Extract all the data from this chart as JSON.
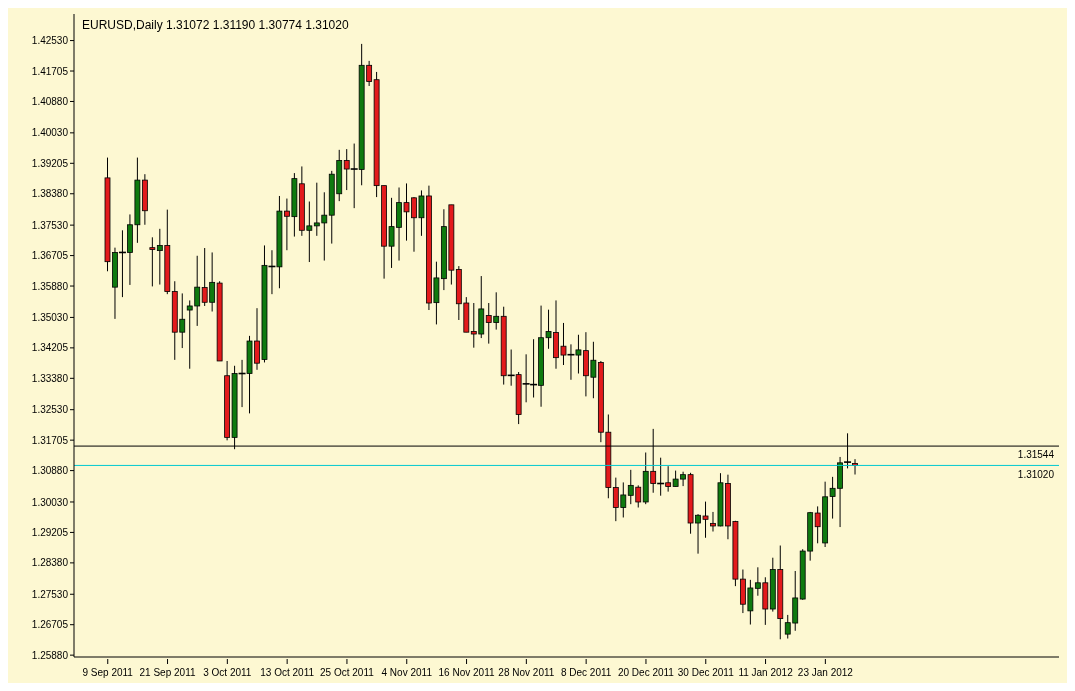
{
  "chart_data": {
    "type": "candlestick",
    "title": "EURUSD,Daily  1.31072 1.31190 1.30774 1.31020",
    "categories": [
      "9 Sep 2011",
      null,
      null,
      null,
      null,
      null,
      null,
      null,
      "21 Sep 2011",
      null,
      null,
      null,
      null,
      null,
      null,
      null,
      "3 Oct 2011",
      null,
      null,
      null,
      null,
      null,
      null,
      null,
      "13 Oct 2011",
      null,
      null,
      null,
      null,
      null,
      null,
      null,
      "25 Oct 2011",
      null,
      null,
      null,
      null,
      null,
      null,
      null,
      "4 Nov 2011",
      null,
      null,
      null,
      null,
      null,
      null,
      null,
      "16 Nov 2011",
      null,
      null,
      null,
      null,
      null,
      null,
      null,
      "28 Nov 2011",
      null,
      null,
      null,
      null,
      null,
      null,
      null,
      "8 Dec 2011",
      null,
      null,
      null,
      null,
      null,
      null,
      null,
      "20 Dec 2011",
      null,
      null,
      null,
      null,
      null,
      null,
      null,
      "30 Dec 2011",
      null,
      null,
      null,
      null,
      null,
      null,
      null,
      "11 Jan 2012",
      null,
      null,
      null,
      null,
      null,
      null,
      null,
      "23 Jan 2012",
      null,
      null,
      null,
      null
    ],
    "ohlc": [
      [
        1.3881,
        1.3936,
        1.3628,
        1.3654
      ],
      [
        1.3585,
        1.3692,
        1.3499,
        1.3679
      ],
      [
        1.3679,
        1.3739,
        1.3558,
        1.3679
      ],
      [
        1.3679,
        1.3782,
        1.3591,
        1.3754
      ],
      [
        1.3754,
        1.3936,
        1.3705,
        1.3875
      ],
      [
        1.3875,
        1.3891,
        1.3754,
        1.3792
      ],
      [
        1.3692,
        1.372,
        1.3587,
        1.3687
      ],
      [
        1.3684,
        1.3743,
        1.3592,
        1.3698
      ],
      [
        1.3698,
        1.3795,
        1.3566,
        1.3573
      ],
      [
        1.3573,
        1.3601,
        1.3388,
        1.3463
      ],
      [
        1.3463,
        1.3568,
        1.342,
        1.3498
      ],
      [
        1.3523,
        1.3549,
        1.3364,
        1.3534
      ],
      [
        1.3534,
        1.367,
        1.348,
        1.3585
      ],
      [
        1.3584,
        1.3691,
        1.3534,
        1.3544
      ],
      [
        1.3544,
        1.3679,
        1.3519,
        1.3598
      ],
      [
        1.3596,
        1.3601,
        1.3385,
        1.3385
      ],
      [
        1.3345,
        1.3385,
        1.317,
        1.3178
      ],
      [
        1.3178,
        1.3372,
        1.3146,
        1.3351
      ],
      [
        1.3351,
        1.3388,
        1.326,
        1.3351
      ],
      [
        1.3351,
        1.3453,
        1.3243,
        1.3439
      ],
      [
        1.3439,
        1.3528,
        1.3361,
        1.3379
      ],
      [
        1.3389,
        1.3698,
        1.3381,
        1.3644
      ],
      [
        1.3641,
        1.3685,
        1.3566,
        1.3641
      ],
      [
        1.364,
        1.3832,
        1.3582,
        1.3791
      ],
      [
        1.3791,
        1.3825,
        1.3685,
        1.3777
      ],
      [
        1.3776,
        1.3894,
        1.3722,
        1.3879
      ],
      [
        1.3865,
        1.3912,
        1.3724,
        1.3739
      ],
      [
        1.3739,
        1.3817,
        1.3653,
        1.3751
      ],
      [
        1.3751,
        1.3868,
        1.3724,
        1.3759
      ],
      [
        1.3759,
        1.3842,
        1.3657,
        1.378
      ],
      [
        1.378,
        1.39,
        1.3703,
        1.3891
      ],
      [
        1.3838,
        1.3957,
        1.3818,
        1.3928
      ],
      [
        1.3928,
        1.3959,
        1.3848,
        1.3905
      ],
      [
        1.3905,
        1.3974,
        1.3799,
        1.3905
      ],
      [
        1.3904,
        1.4244,
        1.3861,
        1.4186
      ],
      [
        1.4186,
        1.4198,
        1.413,
        1.4142
      ],
      [
        1.4147,
        1.4168,
        1.3829,
        1.386
      ],
      [
        1.386,
        1.386,
        1.3608,
        1.3696
      ],
      [
        1.3696,
        1.3827,
        1.3637,
        1.3749
      ],
      [
        1.3747,
        1.3855,
        1.3657,
        1.3814
      ],
      [
        1.3814,
        1.3866,
        1.3711,
        1.3789
      ],
      [
        1.3827,
        1.3829,
        1.3681,
        1.3773
      ],
      [
        1.3773,
        1.3847,
        1.3724,
        1.3832
      ],
      [
        1.3832,
        1.386,
        1.3523,
        1.3542
      ],
      [
        1.3543,
        1.3654,
        1.3484,
        1.361
      ],
      [
        1.3608,
        1.3796,
        1.3577,
        1.3749
      ],
      [
        1.3808,
        1.3808,
        1.3592,
        1.3631
      ],
      [
        1.3633,
        1.3642,
        1.3496,
        1.354
      ],
      [
        1.3542,
        1.3558,
        1.3463,
        1.3463
      ],
      [
        1.3465,
        1.3542,
        1.3421,
        1.3458
      ],
      [
        1.3458,
        1.3615,
        1.3447,
        1.3526
      ],
      [
        1.3508,
        1.3542,
        1.3432,
        1.3489
      ],
      [
        1.3489,
        1.3571,
        1.347,
        1.3506
      ],
      [
        1.3506,
        1.3532,
        1.3321,
        1.3345
      ],
      [
        1.3346,
        1.3416,
        1.3318,
        1.3346
      ],
      [
        1.3348,
        1.3355,
        1.3214,
        1.324
      ],
      [
        1.3323,
        1.3403,
        1.3273,
        1.3323
      ],
      [
        1.3321,
        1.3444,
        1.3286,
        1.3321
      ],
      [
        1.3319,
        1.3535,
        1.3261,
        1.3448
      ],
      [
        1.3448,
        1.3524,
        1.3418,
        1.3465
      ],
      [
        1.3462,
        1.3549,
        1.3364,
        1.3394
      ],
      [
        1.3425,
        1.3488,
        1.3374,
        1.3401
      ],
      [
        1.3402,
        1.343,
        1.3334,
        1.3402
      ],
      [
        1.3401,
        1.3456,
        1.3351,
        1.3415
      ],
      [
        1.3413,
        1.3463,
        1.3289,
        1.3345
      ],
      [
        1.3341,
        1.3437,
        1.3284,
        1.3387
      ],
      [
        1.3381,
        1.3385,
        1.3165,
        1.3192
      ],
      [
        1.3192,
        1.324,
        1.3013,
        1.3042
      ],
      [
        1.3042,
        1.3069,
        1.2951,
        1.2988
      ],
      [
        1.2988,
        1.3056,
        1.2961,
        1.3022
      ],
      [
        1.3021,
        1.309,
        1.2997,
        1.3048
      ],
      [
        1.3043,
        1.3048,
        1.2988,
        1.3003
      ],
      [
        1.3003,
        1.3137,
        1.2997,
        1.3086
      ],
      [
        1.3086,
        1.3201,
        1.3028,
        1.3053
      ],
      [
        1.3053,
        1.3123,
        1.302,
        1.3053
      ],
      [
        1.3055,
        1.31,
        1.3031,
        1.3045
      ],
      [
        1.3045,
        1.3088,
        1.3045,
        1.3065
      ],
      [
        1.3065,
        1.3085,
        1.3046,
        1.3077
      ],
      [
        1.3077,
        1.3082,
        1.2917,
        1.2946
      ],
      [
        1.2946,
        1.297,
        1.2863,
        1.2967
      ],
      [
        1.2965,
        1.3004,
        1.2906,
        1.2956
      ],
      [
        1.2945,
        1.2976,
        1.2923,
        1.2938
      ],
      [
        1.2938,
        1.3081,
        1.2937,
        1.3055
      ],
      [
        1.3053,
        1.3077,
        1.2902,
        1.2938
      ],
      [
        1.295,
        1.2952,
        1.2775,
        1.2794
      ],
      [
        1.2794,
        1.282,
        1.2702,
        1.2726
      ],
      [
        1.2708,
        1.2792,
        1.2671,
        1.277
      ],
      [
        1.2769,
        1.2826,
        1.2749,
        1.2784
      ],
      [
        1.2784,
        1.2799,
        1.267,
        1.2713
      ],
      [
        1.2713,
        1.2852,
        1.2706,
        1.282
      ],
      [
        1.282,
        1.2885,
        1.2631,
        1.2687
      ],
      [
        1.2645,
        1.2697,
        1.2633,
        1.2676
      ],
      [
        1.2675,
        1.2816,
        1.2654,
        1.2743
      ],
      [
        1.274,
        1.2875,
        1.2738,
        1.287
      ],
      [
        1.287,
        1.2976,
        1.2844,
        1.2974
      ],
      [
        1.2973,
        1.2991,
        1.2891,
        1.2936
      ],
      [
        1.2892,
        1.3058,
        1.2881,
        1.3017
      ],
      [
        1.3018,
        1.3071,
        1.2958,
        1.304
      ],
      [
        1.304,
        1.3125,
        1.2935,
        1.3109
      ],
      [
        1.3111,
        1.3189,
        1.3094,
        1.3111
      ],
      [
        1.31072,
        1.3119,
        1.30774,
        1.3102
      ]
    ],
    "colors": [
      "#e31a1c",
      "#0f7a0f",
      "#000000",
      "#0f7a0f",
      "#0f7a0f",
      "#e31a1c",
      "#e31a1c",
      "#0f7a0f",
      "#e31a1c",
      "#e31a1c",
      "#0f7a0f",
      "#0f7a0f",
      "#0f7a0f",
      "#e31a1c",
      "#0f7a0f",
      "#e31a1c",
      "#e31a1c",
      "#0f7a0f",
      "#000000",
      "#0f7a0f",
      "#e31a1c",
      "#0f7a0f",
      "#000000",
      "#0f7a0f",
      "#e31a1c",
      "#0f7a0f",
      "#e31a1c",
      "#0f7a0f",
      "#0f7a0f",
      "#0f7a0f",
      "#0f7a0f",
      "#0f7a0f",
      "#e31a1c",
      "#000000",
      "#0f7a0f",
      "#e31a1c",
      "#e31a1c",
      "#e31a1c",
      "#0f7a0f",
      "#0f7a0f",
      "#e31a1c",
      "#e31a1c",
      "#0f7a0f",
      "#e31a1c",
      "#0f7a0f",
      "#0f7a0f",
      "#e31a1c",
      "#e31a1c",
      "#e31a1c",
      "#e31a1c",
      "#0f7a0f",
      "#e31a1c",
      "#0f7a0f",
      "#e31a1c",
      "#000000",
      "#e31a1c",
      "#000000",
      "#000000",
      "#0f7a0f",
      "#0f7a0f",
      "#e31a1c",
      "#e31a1c",
      "#000000",
      "#0f7a0f",
      "#e31a1c",
      "#0f7a0f",
      "#e31a1c",
      "#e31a1c",
      "#e31a1c",
      "#0f7a0f",
      "#0f7a0f",
      "#e31a1c",
      "#0f7a0f",
      "#e31a1c",
      "#000000",
      "#e31a1c",
      "#0f7a0f",
      "#0f7a0f",
      "#e31a1c",
      "#0f7a0f",
      "#e31a1c",
      "#e31a1c",
      "#0f7a0f",
      "#e31a1c",
      "#e31a1c",
      "#e31a1c",
      "#0f7a0f",
      "#0f7a0f",
      "#e31a1c",
      "#0f7a0f",
      "#e31a1c",
      "#0f7a0f",
      "#0f7a0f",
      "#0f7a0f",
      "#0f7a0f",
      "#e31a1c",
      "#0f7a0f",
      "#0f7a0f",
      "#0f7a0f",
      "#000000",
      "#e31a1c"
    ],
    "ylim": [
      1.2583,
      1.4325
    ],
    "yticks": [
      {
        "value": 1.4253,
        "label": "1.42530"
      },
      {
        "value": 1.41705,
        "label": "1.41705"
      },
      {
        "value": 1.4088,
        "label": "1.40880"
      },
      {
        "value": 1.4003,
        "label": "1.40030"
      },
      {
        "value": 1.39205,
        "label": "1.39205"
      },
      {
        "value": 1.3838,
        "label": "1.38380"
      },
      {
        "value": 1.3753,
        "label": "1.37530"
      },
      {
        "value": 1.36705,
        "label": "1.36705"
      },
      {
        "value": 1.3588,
        "label": "1.35880"
      },
      {
        "value": 1.3503,
        "label": "1.35030"
      },
      {
        "value": 1.34205,
        "label": "1.34205"
      },
      {
        "value": 1.3338,
        "label": "1.33380"
      },
      {
        "value": 1.3253,
        "label": "1.32530"
      },
      {
        "value": 1.31705,
        "label": "1.31705"
      },
      {
        "value": 1.3088,
        "label": "1.30880"
      },
      {
        "value": 1.3003,
        "label": "1.30030"
      },
      {
        "value": 1.29205,
        "label": "1.29205"
      },
      {
        "value": 1.2838,
        "label": "1.28380"
      },
      {
        "value": 1.2753,
        "label": "1.27530"
      },
      {
        "value": 1.26705,
        "label": "1.26705"
      },
      {
        "value": 1.2588,
        "label": "1.25880"
      }
    ],
    "ref_lines": [
      {
        "axis": "y",
        "value": 1.31544,
        "label": "1.31544",
        "color": "#000000"
      },
      {
        "axis": "y",
        "value": 1.3102,
        "label": "1.31020",
        "color": "#00c8d0"
      }
    ]
  }
}
